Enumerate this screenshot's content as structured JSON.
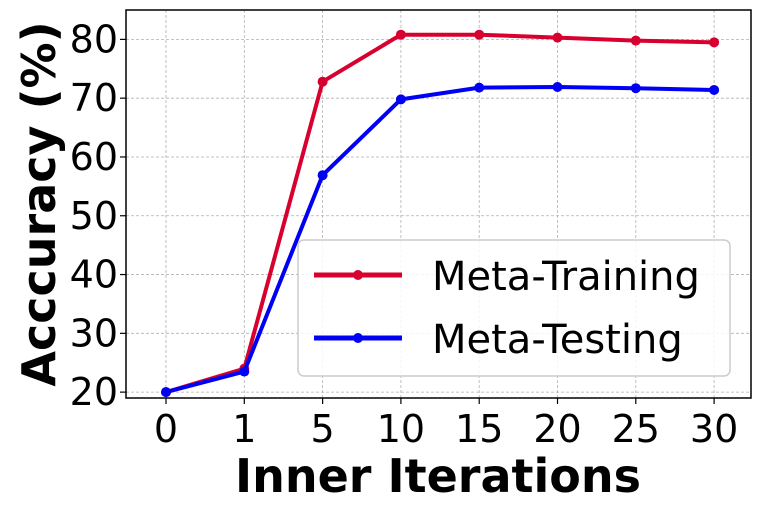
{
  "chart_data": {
    "type": "line",
    "title": "",
    "xlabel": "Inner Iterations",
    "ylabel": "Acccuracy (%)",
    "categories": [
      "0",
      "1",
      "5",
      "10",
      "15",
      "20",
      "25",
      "30"
    ],
    "yticks": [
      "20",
      "30",
      "40",
      "50",
      "60",
      "70",
      "80"
    ],
    "ylim": [
      19,
      85
    ],
    "grid": true,
    "legend_position": "lower-right",
    "series": [
      {
        "name": "Meta-Training",
        "color": "#d7002f",
        "values": [
          20.0,
          24.0,
          72.8,
          80.8,
          80.8,
          80.3,
          79.8,
          79.5
        ]
      },
      {
        "name": "Meta-Testing",
        "color": "#0000f5",
        "values": [
          20.0,
          23.5,
          56.9,
          69.8,
          71.8,
          71.9,
          71.7,
          71.4
        ]
      }
    ]
  }
}
